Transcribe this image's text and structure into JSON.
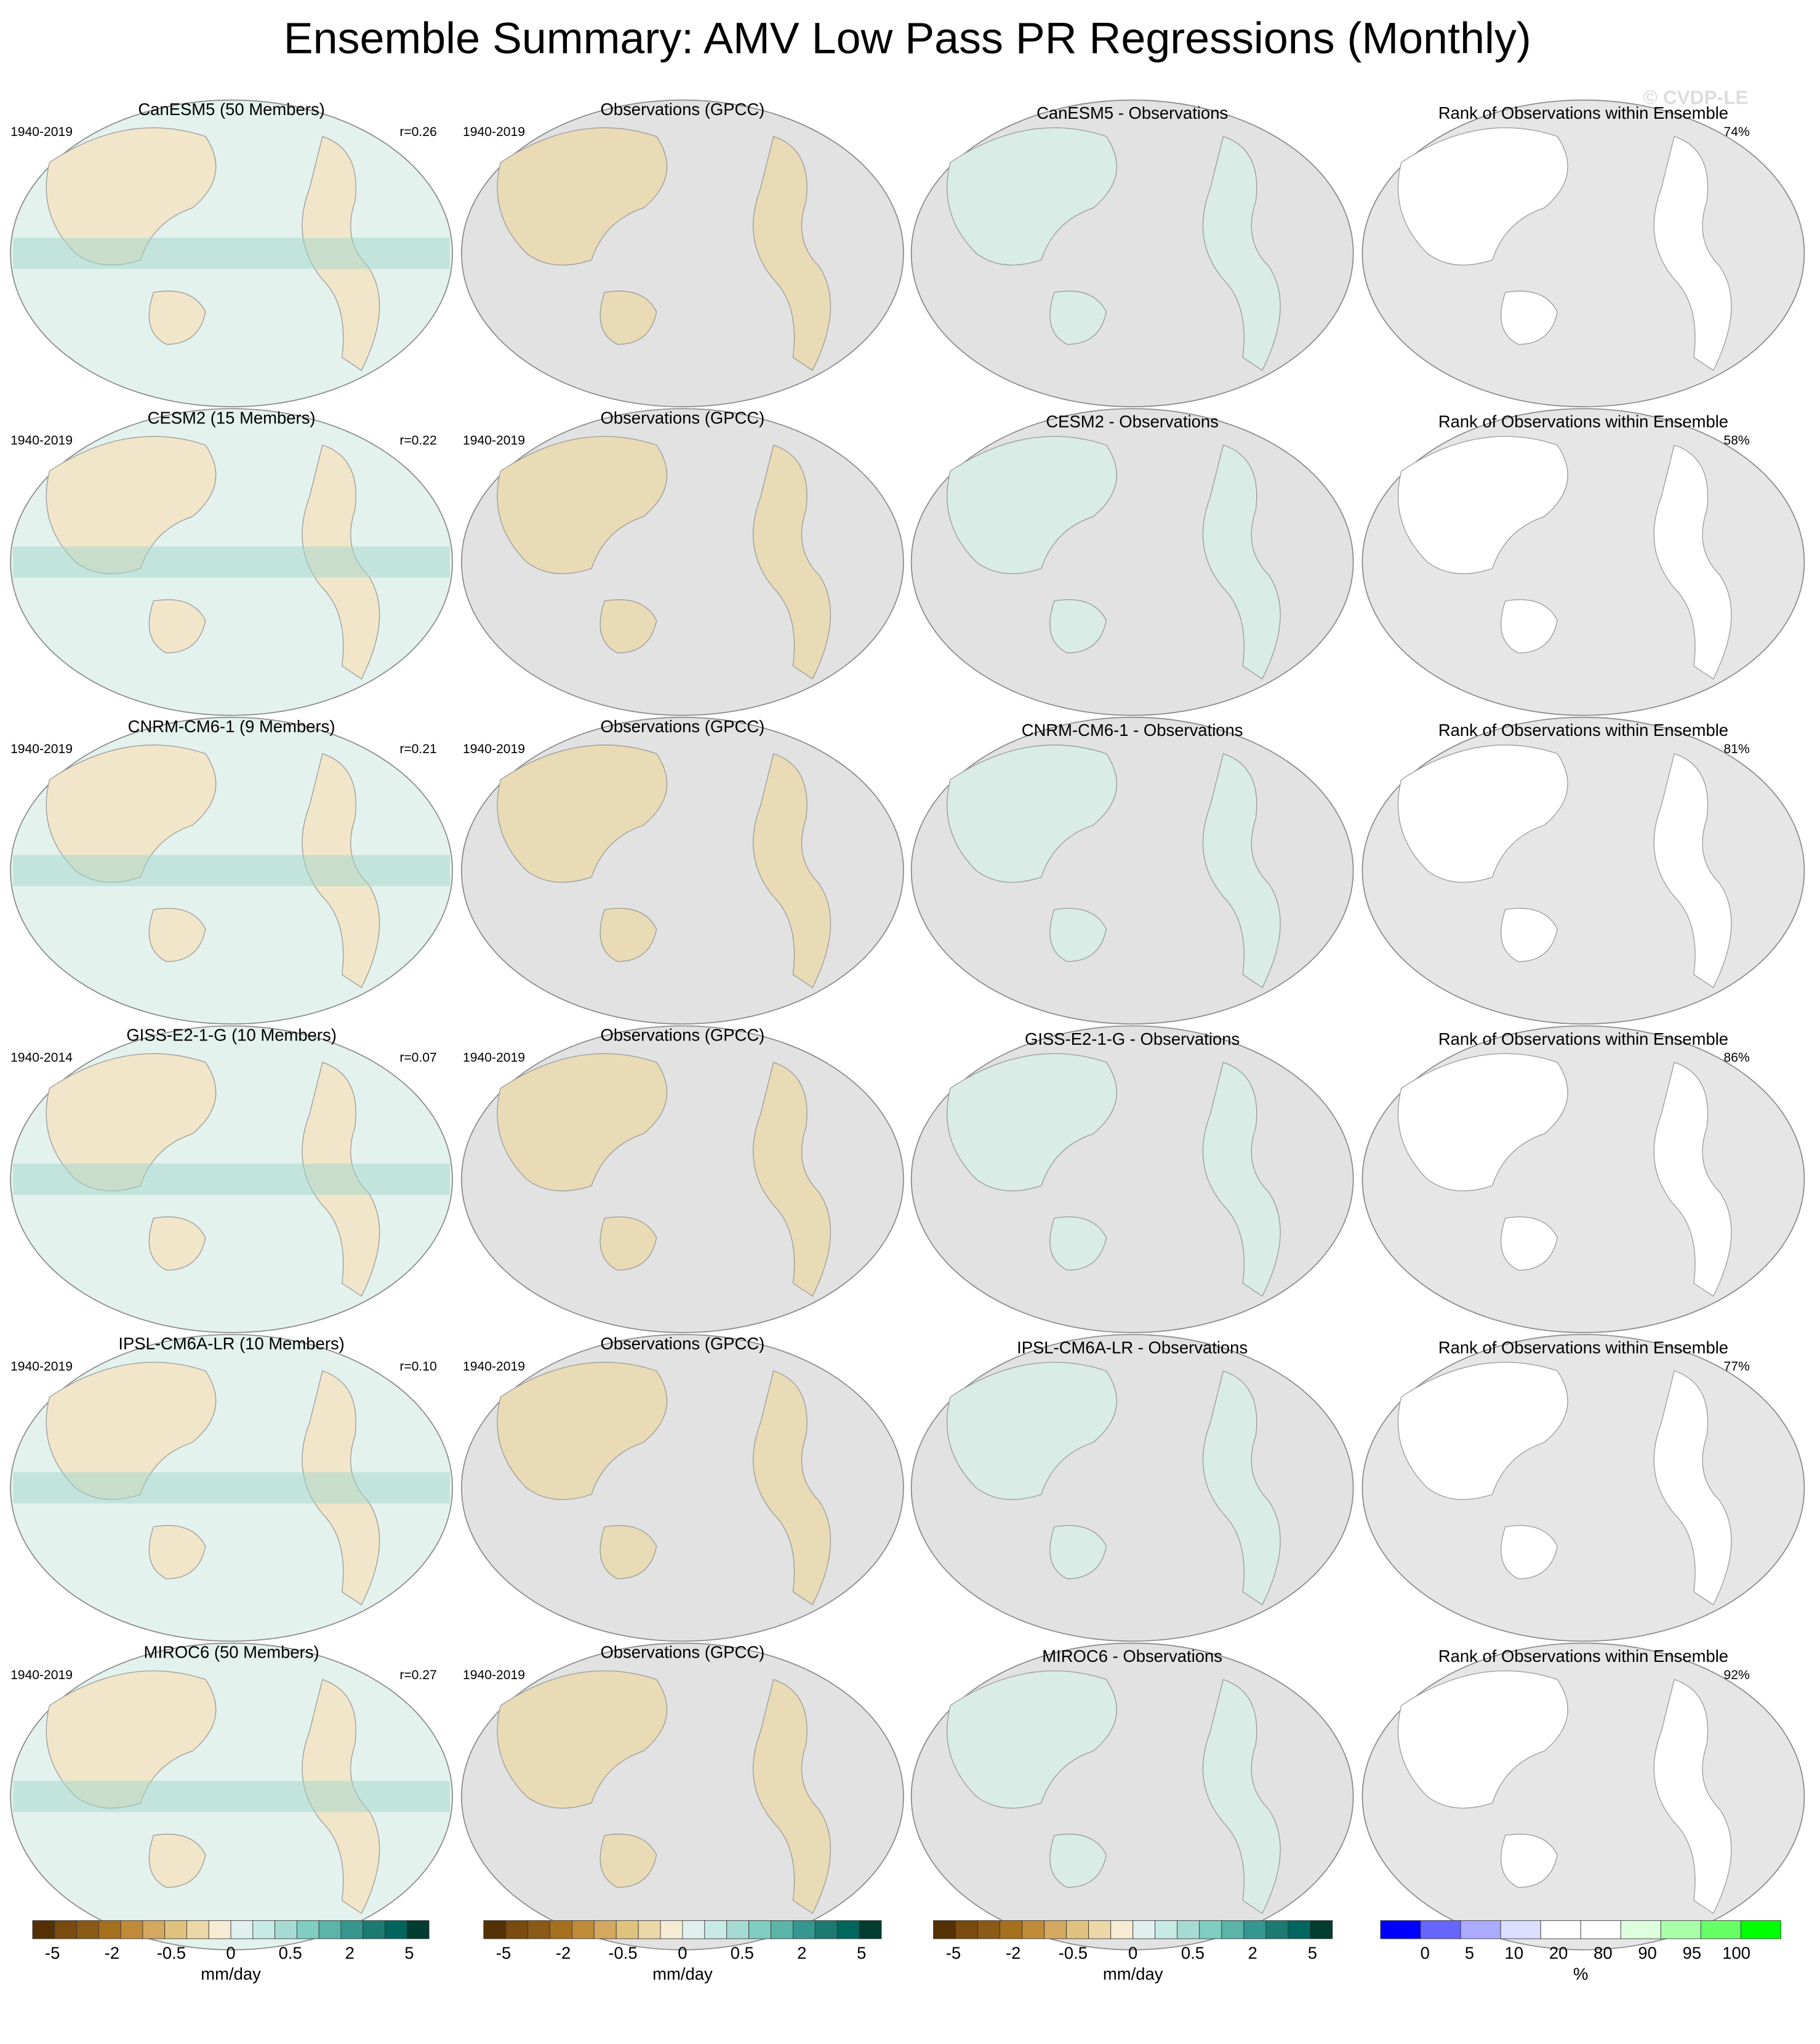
{
  "title": "Ensemble Summary: AMV Low Pass PR Regressions (Monthly)",
  "watermark": "© CVDP-LE",
  "rows": [
    {
      "model": "CanESM5 (50 Members)",
      "model_years": "1940-2019",
      "r": "r=0.26",
      "obs": "Observations (GPCC)",
      "obs_years": "1940-2019",
      "diff": "CanESM5 - Observations",
      "rank": "Rank of Observations within Ensemble",
      "rank_pct": "74%"
    },
    {
      "model": "CESM2 (15 Members)",
      "model_years": "1940-2019",
      "r": "r=0.22",
      "obs": "Observations (GPCC)",
      "obs_years": "1940-2019",
      "diff": "CESM2 - Observations",
      "rank": "Rank of Observations within Ensemble",
      "rank_pct": "58%"
    },
    {
      "model": "CNRM-CM6-1 (9 Members)",
      "model_years": "1940-2019",
      "r": "r=0.21",
      "obs": "Observations (GPCC)",
      "obs_years": "1940-2019",
      "diff": "CNRM-CM6-1 - Observations",
      "rank": "Rank of Observations within Ensemble",
      "rank_pct": "81%"
    },
    {
      "model": "GISS-E2-1-G (10 Members)",
      "model_years": "1940-2014",
      "r": "r=0.07",
      "obs": "Observations (GPCC)",
      "obs_years": "1940-2019",
      "diff": "GISS-E2-1-G - Observations",
      "rank": "Rank of Observations within Ensemble",
      "rank_pct": "86%"
    },
    {
      "model": "IPSL-CM6A-LR (10 Members)",
      "model_years": "1940-2019",
      "r": "r=0.10",
      "obs": "Observations (GPCC)",
      "obs_years": "1940-2019",
      "diff": "IPSL-CM6A-LR - Observations",
      "rank": "Rank of Observations within Ensemble",
      "rank_pct": "77%"
    },
    {
      "model": "MIROC6 (50 Members)",
      "model_years": "1940-2019",
      "r": "r=0.27",
      "obs": "Observations (GPCC)",
      "obs_years": "1940-2019",
      "diff": "MIROC6 - Observations",
      "rank": "Rank of Observations within Ensemble",
      "rank_pct": "92%"
    }
  ],
  "colorbars": [
    {
      "labels": [
        "-5",
        "-2",
        "-0.5",
        "0",
        "0.5",
        "2",
        "5"
      ],
      "unit": "mm/day",
      "colors": [
        "#543005",
        "#7a4a0e",
        "#8c5a17",
        "#a6711f",
        "#bf8a3a",
        "#d4a85f",
        "#dfc27d",
        "#ecd7a8",
        "#f6ebd3",
        "#e0f0ee",
        "#c7eae5",
        "#a6dbd3",
        "#80cdc1",
        "#5ab4a8",
        "#35978f",
        "#1d7a70",
        "#01665e",
        "#003c30"
      ]
    },
    {
      "labels": [
        "-5",
        "-2",
        "-0.5",
        "0",
        "0.5",
        "2",
        "5"
      ],
      "unit": "mm/day",
      "colors": [
        "#543005",
        "#7a4a0e",
        "#8c5a17",
        "#a6711f",
        "#bf8a3a",
        "#d4a85f",
        "#dfc27d",
        "#ecd7a8",
        "#f6ebd3",
        "#e0f0ee",
        "#c7eae5",
        "#a6dbd3",
        "#80cdc1",
        "#5ab4a8",
        "#35978f",
        "#1d7a70",
        "#01665e",
        "#003c30"
      ]
    },
    {
      "labels": [
        "-5",
        "-2",
        "-0.5",
        "0",
        "0.5",
        "2",
        "5"
      ],
      "unit": "mm/day",
      "colors": [
        "#543005",
        "#7a4a0e",
        "#8c5a17",
        "#a6711f",
        "#bf8a3a",
        "#d4a85f",
        "#dfc27d",
        "#ecd7a8",
        "#f6ebd3",
        "#e0f0ee",
        "#c7eae5",
        "#a6dbd3",
        "#80cdc1",
        "#5ab4a8",
        "#35978f",
        "#1d7a70",
        "#01665e",
        "#003c30"
      ]
    },
    {
      "labels": [
        "0",
        "5",
        "10",
        "20",
        "80",
        "90",
        "95",
        "100"
      ],
      "unit": "%",
      "colors": [
        "#0000ff",
        "#6666ff",
        "#aaaaff",
        "#ddddff",
        "#ffffff",
        "#ffffff",
        "#ddffdd",
        "#aaffaa",
        "#66ff66",
        "#00ff00"
      ]
    }
  ]
}
